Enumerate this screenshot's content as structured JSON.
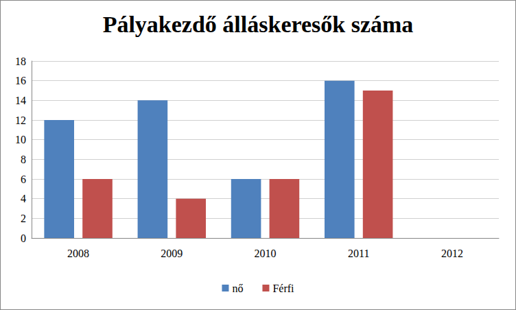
{
  "chart_data": {
    "type": "bar",
    "title": "Pályakezdő álláskeresők száma",
    "categories": [
      "2008",
      "2009",
      "2010",
      "2011",
      "2012"
    ],
    "series": [
      {
        "name": "nő",
        "color": "#4f81bd",
        "values": [
          12,
          14,
          6,
          16,
          null
        ]
      },
      {
        "name": "Férfi",
        "color": "#c0504d",
        "values": [
          6,
          4,
          6,
          15,
          null
        ]
      }
    ],
    "ylim": [
      0,
      18
    ],
    "yticks": [
      0,
      2,
      4,
      6,
      8,
      10,
      12,
      14,
      16,
      18
    ],
    "grid": true,
    "legend": "bottom"
  }
}
